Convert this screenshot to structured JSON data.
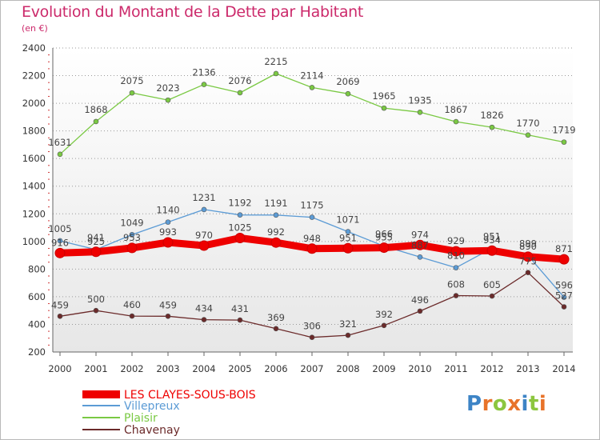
{
  "chart_data": {
    "type": "line",
    "title": "Evolution du Montant de la Dette par Habitant",
    "subtitle": "(en €)",
    "x": [
      "2000",
      "2001",
      "2002",
      "2003",
      "2004",
      "2005",
      "2006",
      "2007",
      "2008",
      "2009",
      "2010",
      "2011",
      "2012",
      "2013",
      "2014"
    ],
    "yticks": [
      "200",
      "400",
      "600",
      "800",
      "1000",
      "1200",
      "1400",
      "1600",
      "1800",
      "2000",
      "2200",
      "2400"
    ],
    "ylim": [
      200,
      2400
    ],
    "grid": "horizontal dotted",
    "legend_position": "bottom-left",
    "series": [
      {
        "name": "LES CLAYES-SOUS-BOIS",
        "color": "#ee0000",
        "values": [
          916,
          925,
          953,
          993,
          970,
          1025,
          992,
          948,
          951,
          955,
          974,
          929,
          934,
          890,
          871
        ]
      },
      {
        "name": "Villepreux",
        "color": "#5b9bd5",
        "values": [
          1005,
          941,
          1049,
          1140,
          1231,
          1192,
          1191,
          1175,
          1071,
          966,
          887,
          810,
          951,
          899,
          596
        ]
      },
      {
        "name": "Plaisir",
        "color": "#7ac943",
        "values": [
          1631,
          1868,
          2075,
          2023,
          2136,
          2076,
          2215,
          2114,
          2069,
          1965,
          1935,
          1867,
          1826,
          1770,
          1719
        ]
      },
      {
        "name": "Chavenay",
        "color": "#6b2a2a",
        "values": [
          459,
          500,
          460,
          459,
          434,
          431,
          369,
          306,
          321,
          392,
          496,
          608,
          605,
          775,
          527
        ]
      }
    ]
  },
  "logo": {
    "letters": [
      "P",
      "r",
      "o",
      "x",
      "i",
      "t",
      "i"
    ],
    "colors": [
      "#3d84c6",
      "#e8732a",
      "#8cc63f",
      "#e8732a",
      "#3d84c6",
      "#8cc63f",
      "#e8732a"
    ]
  }
}
